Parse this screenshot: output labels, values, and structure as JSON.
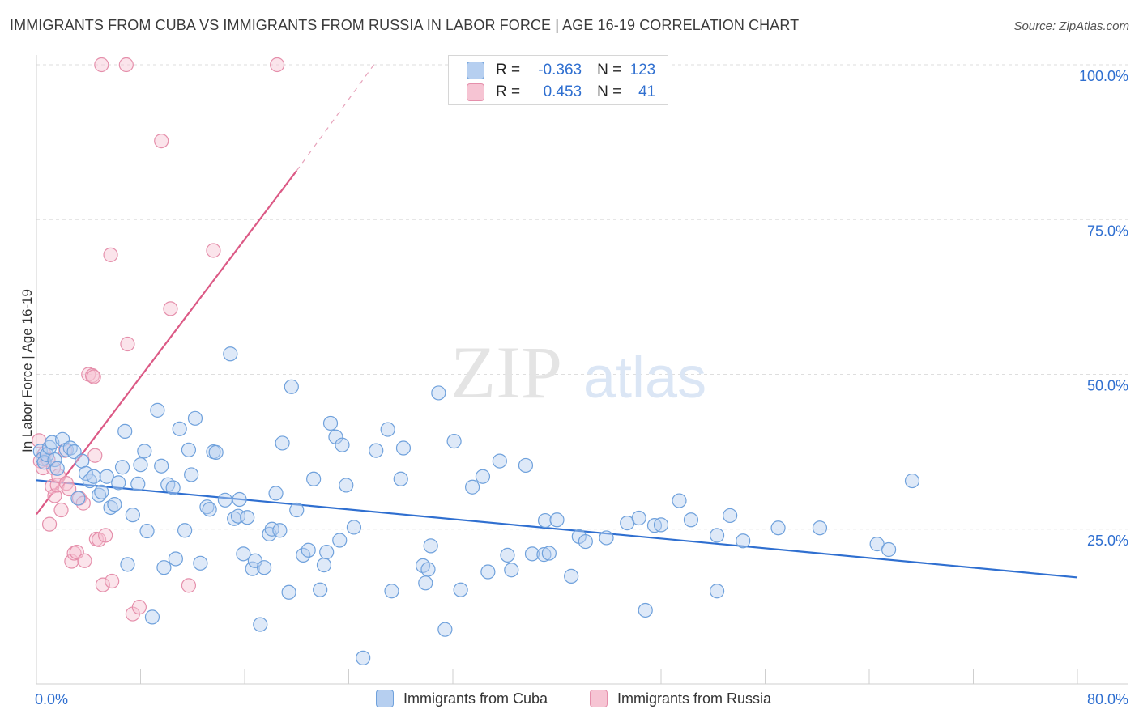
{
  "title": "IMMIGRANTS FROM CUBA VS IMMIGRANTS FROM RUSSIA IN LABOR FORCE | AGE 16-19 CORRELATION CHART",
  "source": "Source: ZipAtlas.com",
  "watermark": {
    "zip": "ZIP",
    "atlas": "atlas"
  },
  "stats": {
    "r_label": "R =",
    "n_label": "N =",
    "rows": [
      {
        "series": "cuba",
        "r": "-0.363",
        "n": "123"
      },
      {
        "series": "russia",
        "r": "0.453",
        "n": "41"
      }
    ]
  },
  "chart_data": {
    "type": "scatter",
    "title": "IMMIGRANTS FROM CUBA VS IMMIGRANTS FROM RUSSIA IN LABOR FORCE | AGE 16-19 CORRELATION CHART",
    "xlabel": "",
    "ylabel": "In Labor Force | Age 16-19",
    "xlim": [
      0,
      80
    ],
    "ylim": [
      0,
      105
    ],
    "x_tick_labels": [
      "0.0%",
      "80.0%"
    ],
    "y_ticks": [
      25,
      50,
      75,
      100
    ],
    "y_tick_labels": [
      "25.0%",
      "50.0%",
      "75.0%",
      "100.0%"
    ],
    "grid": true,
    "legend": "bottom-center",
    "series": [
      {
        "name": "Immigrants from Cuba",
        "color": "#6fa1dc",
        "fill": "#b6cff0",
        "trend": {
          "x0": 0,
          "y0": 32.9,
          "x1": 80,
          "y1": 17.2,
          "color": "#2f6fd0"
        },
        "points": [
          [
            0.3,
            37.6
          ],
          [
            0.5,
            36.4
          ],
          [
            0.6,
            35.8
          ],
          [
            0.8,
            37.0
          ],
          [
            1.0,
            38.2
          ],
          [
            1.2,
            39.0
          ],
          [
            1.4,
            36.2
          ],
          [
            1.6,
            34.8
          ],
          [
            2.0,
            39.5
          ],
          [
            2.3,
            37.8
          ],
          [
            2.6,
            38.1
          ],
          [
            2.9,
            37.5
          ],
          [
            3.2,
            30.0
          ],
          [
            3.5,
            36.0
          ],
          [
            3.8,
            34.0
          ],
          [
            4.1,
            32.8
          ],
          [
            4.4,
            33.5
          ],
          [
            4.8,
            30.5
          ],
          [
            5.0,
            31.0
          ],
          [
            5.4,
            33.5
          ],
          [
            5.7,
            28.5
          ],
          [
            6.0,
            29.0
          ],
          [
            6.3,
            32.5
          ],
          [
            6.6,
            35.0
          ],
          [
            6.8,
            40.8
          ],
          [
            7.0,
            19.3
          ],
          [
            7.4,
            27.3
          ],
          [
            7.8,
            32.3
          ],
          [
            8.0,
            35.4
          ],
          [
            8.3,
            37.6
          ],
          [
            8.5,
            24.7
          ],
          [
            8.9,
            10.8
          ],
          [
            9.3,
            44.2
          ],
          [
            9.6,
            35.2
          ],
          [
            9.8,
            18.8
          ],
          [
            10.1,
            32.2
          ],
          [
            10.5,
            31.7
          ],
          [
            10.7,
            20.2
          ],
          [
            11.0,
            41.2
          ],
          [
            11.4,
            24.8
          ],
          [
            11.7,
            37.8
          ],
          [
            11.9,
            33.8
          ],
          [
            12.2,
            42.9
          ],
          [
            12.6,
            19.5
          ],
          [
            13.1,
            28.6
          ],
          [
            13.3,
            28.2
          ],
          [
            13.6,
            37.5
          ],
          [
            13.8,
            37.4
          ],
          [
            14.5,
            29.7
          ],
          [
            14.9,
            53.3
          ],
          [
            15.2,
            26.7
          ],
          [
            15.5,
            27.1
          ],
          [
            15.6,
            29.8
          ],
          [
            15.9,
            21.0
          ],
          [
            16.2,
            26.9
          ],
          [
            16.6,
            18.6
          ],
          [
            16.8,
            19.9
          ],
          [
            17.2,
            9.6
          ],
          [
            17.5,
            18.8
          ],
          [
            17.9,
            24.2
          ],
          [
            18.1,
            25.0
          ],
          [
            18.4,
            30.8
          ],
          [
            18.7,
            24.8
          ],
          [
            18.9,
            38.9
          ],
          [
            19.4,
            14.8
          ],
          [
            19.6,
            48.0
          ],
          [
            20.0,
            28.1
          ],
          [
            20.5,
            20.8
          ],
          [
            20.9,
            21.6
          ],
          [
            21.3,
            33.1
          ],
          [
            21.8,
            15.2
          ],
          [
            22.1,
            19.2
          ],
          [
            22.3,
            21.3
          ],
          [
            22.6,
            42.1
          ],
          [
            23.0,
            39.9
          ],
          [
            23.3,
            23.2
          ],
          [
            23.5,
            38.6
          ],
          [
            23.8,
            32.1
          ],
          [
            24.4,
            25.3
          ],
          [
            25.1,
            4.2
          ],
          [
            26.1,
            37.7
          ],
          [
            27.0,
            41.1
          ],
          [
            27.3,
            15.0
          ],
          [
            28.0,
            33.1
          ],
          [
            28.2,
            38.1
          ],
          [
            29.7,
            19.1
          ],
          [
            29.9,
            16.3
          ],
          [
            30.1,
            18.5
          ],
          [
            30.3,
            22.3
          ],
          [
            30.9,
            47.0
          ],
          [
            31.4,
            8.8
          ],
          [
            32.1,
            39.2
          ],
          [
            32.6,
            15.2
          ],
          [
            33.5,
            31.8
          ],
          [
            34.3,
            33.5
          ],
          [
            34.7,
            18.1
          ],
          [
            35.6,
            36.0
          ],
          [
            36.2,
            20.8
          ],
          [
            36.5,
            18.4
          ],
          [
            37.6,
            35.3
          ],
          [
            38.1,
            21.0
          ],
          [
            39.0,
            20.9
          ],
          [
            39.4,
            21.1
          ],
          [
            39.1,
            26.4
          ],
          [
            40.0,
            26.5
          ],
          [
            41.1,
            17.4
          ],
          [
            41.7,
            23.8
          ],
          [
            42.2,
            23.0
          ],
          [
            43.8,
            23.6
          ],
          [
            45.4,
            26.0
          ],
          [
            46.3,
            26.8
          ],
          [
            46.8,
            11.9
          ],
          [
            47.5,
            25.6
          ],
          [
            48.0,
            25.7
          ],
          [
            49.4,
            29.6
          ],
          [
            50.3,
            26.5
          ],
          [
            52.3,
            24.0
          ],
          [
            52.3,
            15.0
          ],
          [
            53.3,
            27.2
          ],
          [
            54.3,
            23.1
          ],
          [
            57.0,
            25.2
          ],
          [
            60.2,
            25.2
          ],
          [
            64.6,
            22.6
          ],
          [
            65.5,
            21.7
          ],
          [
            67.3,
            32.8
          ]
        ]
      },
      {
        "name": "Immigrants from Russia",
        "color": "#e58fab",
        "fill": "#f6c4d3",
        "trend": {
          "x0": 0,
          "y0": 27.4,
          "x1": 20.0,
          "y1": 82.9,
          "color": "#dc5a86"
        },
        "trend_dashed": {
          "x0": 20.0,
          "y0": 82.9,
          "x1": 26.0,
          "y1": 100.2
        },
        "points": [
          [
            0.2,
            39.3
          ],
          [
            0.3,
            36.0
          ],
          [
            0.5,
            34.9
          ],
          [
            0.6,
            37.1
          ],
          [
            0.9,
            36.2
          ],
          [
            1.0,
            25.8
          ],
          [
            1.2,
            31.9
          ],
          [
            1.3,
            34.9
          ],
          [
            1.4,
            30.4
          ],
          [
            1.6,
            32.1
          ],
          [
            1.7,
            33.6
          ],
          [
            1.9,
            28.1
          ],
          [
            2.2,
            37.7
          ],
          [
            2.3,
            32.4
          ],
          [
            2.5,
            31.5
          ],
          [
            2.7,
            19.8
          ],
          [
            2.9,
            21.1
          ],
          [
            3.1,
            21.3
          ],
          [
            3.3,
            30.0
          ],
          [
            3.6,
            29.2
          ],
          [
            3.7,
            19.9
          ],
          [
            4.0,
            50.0
          ],
          [
            4.3,
            49.8
          ],
          [
            4.4,
            49.6
          ],
          [
            4.5,
            36.9
          ],
          [
            4.6,
            23.4
          ],
          [
            4.8,
            23.3
          ],
          [
            5.0,
            100.0
          ],
          [
            5.1,
            16.0
          ],
          [
            5.3,
            24.0
          ],
          [
            5.7,
            69.3
          ],
          [
            5.8,
            16.6
          ],
          [
            6.9,
            100.0
          ],
          [
            7.0,
            54.9
          ],
          [
            7.4,
            11.3
          ],
          [
            7.9,
            12.4
          ],
          [
            9.6,
            87.7
          ],
          [
            10.3,
            60.6
          ],
          [
            11.7,
            15.9
          ],
          [
            13.6,
            70.0
          ],
          [
            18.5,
            100.0
          ]
        ]
      }
    ]
  }
}
